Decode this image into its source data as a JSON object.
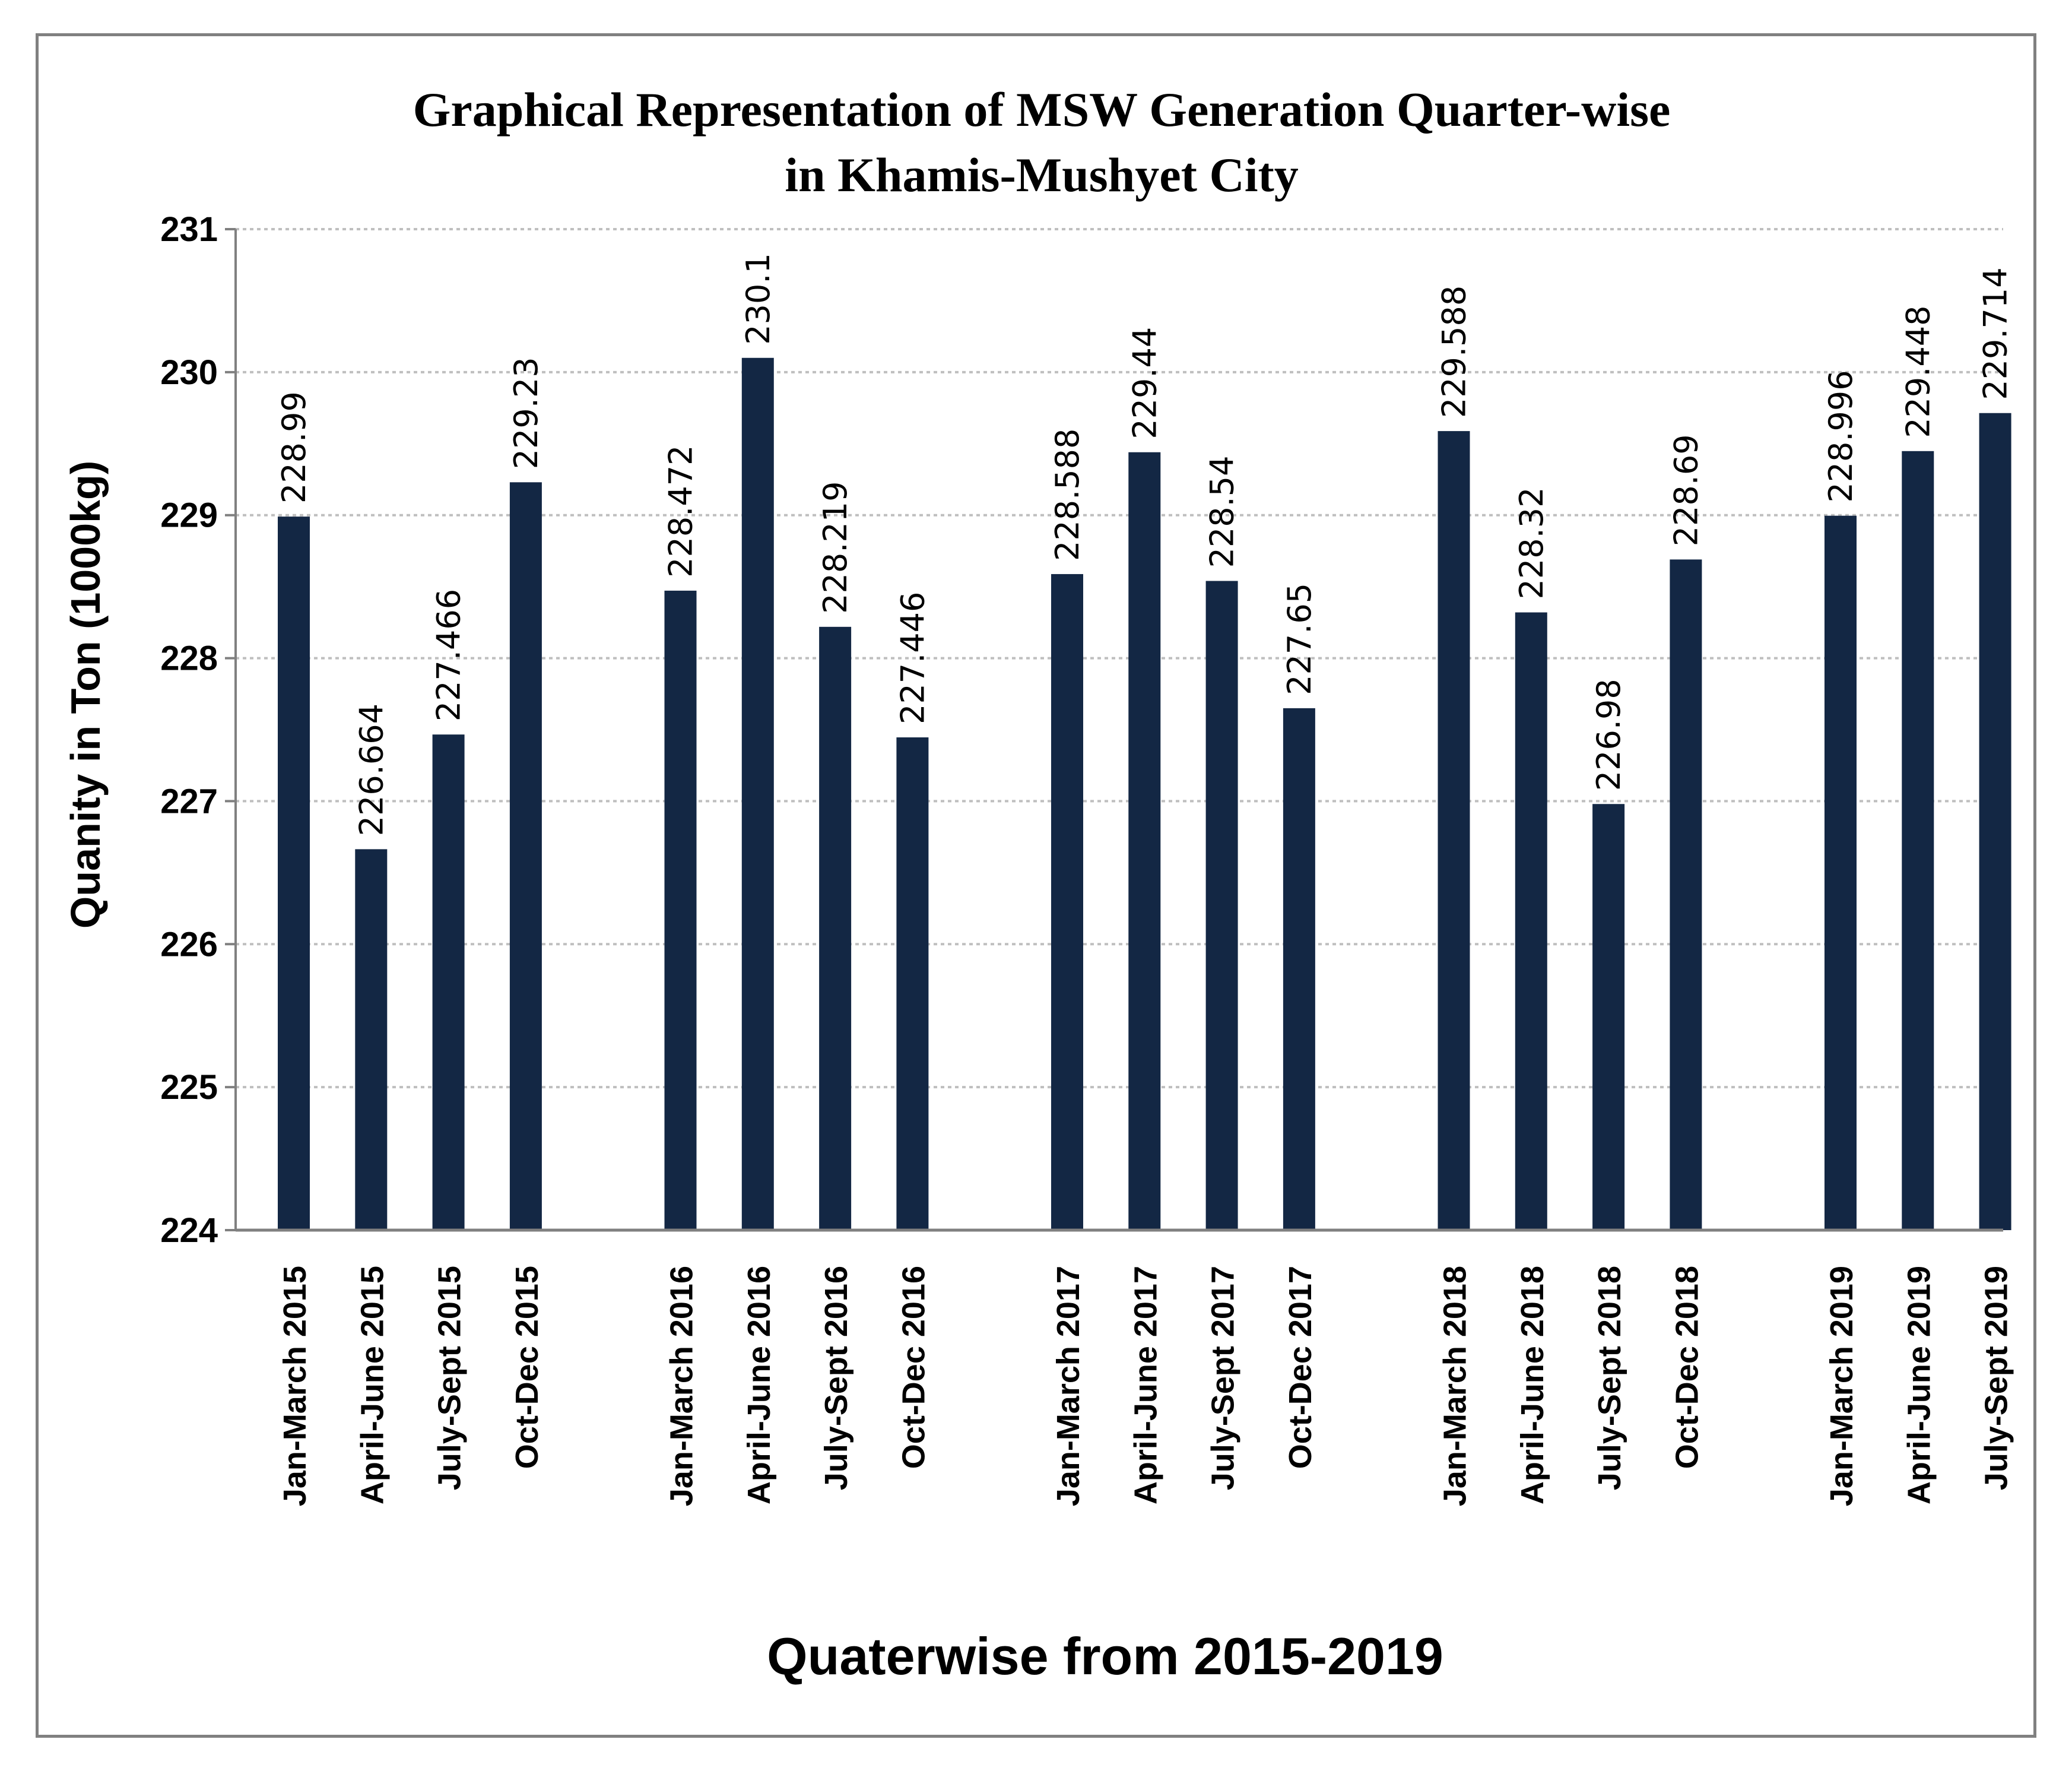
{
  "colors": {
    "bar": "#132744",
    "grid": "#bfbfbf",
    "axis": "#808080",
    "frame": "#808080"
  },
  "chart_data": {
    "type": "bar",
    "title_line1": "Graphical Representation of MSW Generation Quarter-wise",
    "title_line2": "in Khamis-Mushyet City",
    "xlabel": "Quaterwise from 2015-2019",
    "ylabel": "Quanity in Ton (1000kg)",
    "ylim": [
      224,
      231
    ],
    "yticks": [
      224,
      225,
      226,
      227,
      228,
      229,
      230,
      231
    ],
    "grid": true,
    "categories": [
      "Jan-March 2015",
      "April-June 2015",
      "July-Sept 2015",
      "Oct-Dec 2015",
      "",
      "Jan-March 2016",
      "April-June 2016",
      "July-Sept 2016",
      "Oct-Dec 2016",
      "",
      "Jan-March 2017",
      "April-June 2017",
      "July-Sept 2017",
      "Oct-Dec 2017",
      "",
      "Jan-March 2018",
      "April-June 2018",
      "July-Sept 2018",
      "Oct-Dec 2018",
      "",
      "Jan-March 2019",
      "April-June 2019",
      "July-Sept 2019"
    ],
    "values": [
      228.99,
      226.664,
      227.466,
      229.23,
      null,
      228.472,
      230.1,
      228.219,
      227.446,
      null,
      228.588,
      229.44,
      228.54,
      227.65,
      null,
      229.588,
      228.32,
      226.98,
      228.69,
      null,
      228.996,
      229.448,
      229.714
    ],
    "value_labels": [
      "228.99",
      "226.664",
      "227.466",
      "229.23",
      "",
      "228.472",
      "230.1",
      "228.219",
      "227.446",
      "",
      "228.588",
      "229.44",
      "228.54",
      "227.65",
      "",
      "229.588",
      "228.32",
      "226.98",
      "228.69",
      "",
      "228.996",
      "229.448",
      "229.714"
    ]
  }
}
